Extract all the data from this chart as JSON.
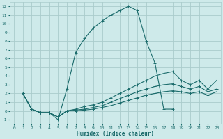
{
  "xlabel": "Humidex (Indice chaleur)",
  "bg_color": "#ceeaea",
  "grid_color": "#aacccc",
  "line_color": "#1a6b6b",
  "xlim": [
    -0.5,
    23.5
  ],
  "ylim": [
    -1.5,
    12.5
  ],
  "xticks": [
    0,
    1,
    2,
    3,
    4,
    5,
    6,
    7,
    8,
    9,
    10,
    11,
    12,
    13,
    14,
    15,
    16,
    17,
    18,
    19,
    20,
    21,
    22,
    23
  ],
  "yticks": [
    -1,
    0,
    1,
    2,
    3,
    4,
    5,
    6,
    7,
    8,
    9,
    10,
    11,
    12
  ],
  "series": [
    {
      "x": [
        1,
        2,
        3,
        4,
        5,
        6,
        7,
        8,
        9,
        10,
        11,
        12,
        13,
        14,
        15,
        16,
        17,
        18
      ],
      "y": [
        2.0,
        0.2,
        -0.2,
        -0.2,
        -1.0,
        2.5,
        6.7,
        8.3,
        9.5,
        10.3,
        11.0,
        11.5,
        12.0,
        11.5,
        8.0,
        5.5,
        0.2,
        0.2
      ]
    },
    {
      "x": [
        1,
        2,
        3,
        4,
        5,
        6,
        7,
        8,
        9,
        10,
        11,
        12,
        13,
        14,
        15,
        16,
        17,
        18,
        19,
        20,
        21,
        22,
        23
      ],
      "y": [
        2.0,
        0.2,
        -0.2,
        -0.2,
        -0.7,
        0.0,
        0.2,
        0.5,
        0.7,
        1.0,
        1.5,
        2.0,
        2.5,
        3.0,
        3.5,
        4.0,
        4.3,
        4.5,
        3.5,
        3.0,
        3.5,
        2.5,
        3.5
      ]
    },
    {
      "x": [
        1,
        2,
        3,
        4,
        5,
        6,
        7,
        8,
        9,
        10,
        11,
        12,
        13,
        14,
        15,
        16,
        17,
        18,
        19,
        20,
        21,
        22,
        23
      ],
      "y": [
        2.0,
        0.2,
        -0.2,
        -0.2,
        -0.7,
        0.0,
        0.1,
        0.2,
        0.4,
        0.6,
        1.0,
        1.4,
        1.8,
        2.2,
        2.5,
        2.8,
        3.0,
        3.1,
        2.8,
        2.5,
        2.8,
        2.2,
        2.5
      ]
    },
    {
      "x": [
        1,
        2,
        3,
        4,
        5,
        6,
        7,
        8,
        9,
        10,
        11,
        12,
        13,
        14,
        15,
        16,
        17,
        18,
        19,
        20,
        21,
        22,
        23
      ],
      "y": [
        2.0,
        0.2,
        -0.2,
        -0.2,
        -0.7,
        0.0,
        0.0,
        0.1,
        0.2,
        0.4,
        0.6,
        0.9,
        1.2,
        1.5,
        1.8,
        2.0,
        2.2,
        2.3,
        2.2,
        2.0,
        2.2,
        1.8,
        2.2
      ]
    }
  ]
}
